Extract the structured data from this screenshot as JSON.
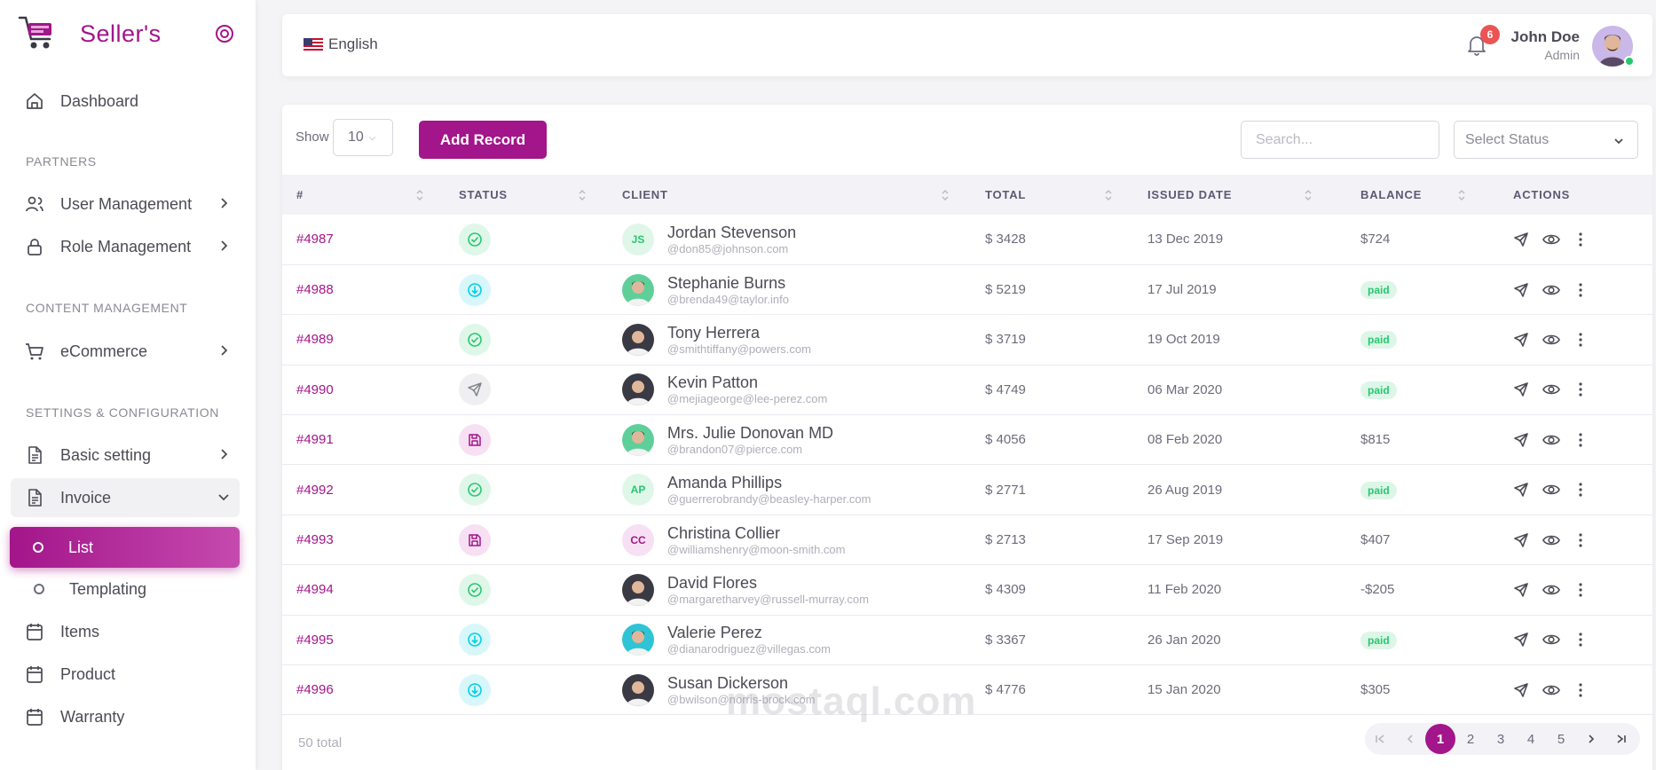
{
  "brand": {
    "name": "Seller's"
  },
  "sidebar": {
    "dashboard": "Dashboard",
    "sections": {
      "partners": "PARTNERS",
      "content": "CONTENT MANAGEMENT",
      "settings": "SETTINGS & CONFIGURATION"
    },
    "user_management": "User Management",
    "role_management": "Role Management",
    "ecommerce": "eCommerce",
    "basic_setting": "Basic setting",
    "invoice": "Invoice",
    "list": "List",
    "templating": "Templating",
    "items": "Items",
    "product": "Product",
    "warranty": "Warranty"
  },
  "header": {
    "language": "English",
    "notifications": "6",
    "user_name": "John Doe",
    "user_role": "Admin"
  },
  "toolbar": {
    "show_label": "Show",
    "page_size": "10",
    "add_record": "Add Record",
    "search_placeholder": "Search...",
    "status_placeholder": "Select Status"
  },
  "table": {
    "headers": {
      "id": "#",
      "status": "STATUS",
      "client": "CLIENT",
      "total": "TOTAL",
      "issued": "ISSUED DATE",
      "balance": "BALANCE",
      "actions": "ACTIONS"
    },
    "rows": [
      {
        "id": "#4987",
        "status_icon": "check-circle-icon",
        "initials": "JS",
        "name": "Jordan Stevenson",
        "email": "@don85@johnson.com",
        "total": "$ 3428",
        "date": "13 Dec 2019",
        "balance": "$724"
      },
      {
        "id": "#4988",
        "status_icon": "arrow-down-circle-icon",
        "initials": "",
        "name": "Stephanie Burns",
        "email": "@brenda49@taylor.info",
        "total": "$ 5219",
        "date": "17 Jul 2019",
        "balance": "paid"
      },
      {
        "id": "#4989",
        "status_icon": "check-circle-icon",
        "initials": "",
        "name": "Tony Herrera",
        "email": "@smithtiffany@powers.com",
        "total": "$ 3719",
        "date": "19 Oct 2019",
        "balance": "paid"
      },
      {
        "id": "#4990",
        "status_icon": "send-icon",
        "initials": "",
        "name": "Kevin Patton",
        "email": "@mejiageorge@lee-perez.com",
        "total": "$ 4749",
        "date": "06 Mar 2020",
        "balance": "paid"
      },
      {
        "id": "#4991",
        "status_icon": "save-icon",
        "initials": "",
        "name": "Mrs. Julie Donovan MD",
        "email": "@brandon07@pierce.com",
        "total": "$ 4056",
        "date": "08 Feb 2020",
        "balance": "$815"
      },
      {
        "id": "#4992",
        "status_icon": "check-circle-icon",
        "initials": "AP",
        "name": "Amanda Phillips",
        "email": "@guerrerobrandy@beasley-harper.com",
        "total": "$ 2771",
        "date": "26 Aug 2019",
        "balance": "paid"
      },
      {
        "id": "#4993",
        "status_icon": "save-icon",
        "initials": "CC",
        "name": "Christina Collier",
        "email": "@williamshenry@moon-smith.com",
        "total": "$ 2713",
        "date": "17 Sep 2019",
        "balance": "$407"
      },
      {
        "id": "#4994",
        "status_icon": "check-circle-icon",
        "initials": "",
        "name": "David Flores",
        "email": "@margaretharvey@russell-murray.com",
        "total": "$ 4309",
        "date": "11 Feb 2020",
        "balance": "-$205"
      },
      {
        "id": "#4995",
        "status_icon": "arrow-down-circle-icon",
        "initials": "",
        "name": "Valerie Perez",
        "email": "@dianarodriguez@villegas.com",
        "total": "$ 3367",
        "date": "26 Jan 2020",
        "balance": "paid"
      },
      {
        "id": "#4996",
        "status_icon": "arrow-down-circle-icon",
        "initials": "",
        "name": "Susan Dickerson",
        "email": "@bwilson@norris-brock.com",
        "total": "$ 4776",
        "date": "15 Jan 2020",
        "balance": "$305"
      }
    ]
  },
  "footer": {
    "total_text": "50 total",
    "pages": [
      "1",
      "2",
      "3",
      "4",
      "5"
    ],
    "current_page": "1"
  },
  "watermark": "mostaql.com",
  "colors": {
    "accent": "#a3158a",
    "success": "#28c76f",
    "info": "#00cfe8",
    "danger": "#ea5455"
  }
}
